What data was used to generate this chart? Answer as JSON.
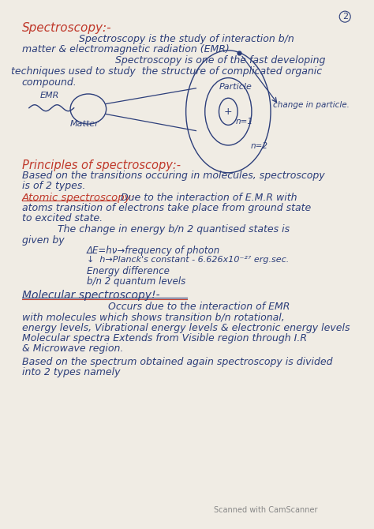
{
  "bg_color": "#f0ece4",
  "page_num": "2",
  "title": "Spectroscopy:-",
  "red_color": "#c0392b",
  "text_color": "#2c3e7a",
  "watermark": "Scanned with CamScanner"
}
